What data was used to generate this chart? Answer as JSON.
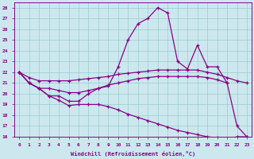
{
  "xlabel": "Windchill (Refroidissement éolien,°C)",
  "background_color": "#cce8ee",
  "line_color": "#880088",
  "grid_color": "#99cccc",
  "xlim": [
    -0.5,
    23.5
  ],
  "ylim": [
    16,
    28.5
  ],
  "yticks": [
    16,
    17,
    18,
    19,
    20,
    21,
    22,
    23,
    24,
    25,
    26,
    27,
    28
  ],
  "xticks": [
    0,
    1,
    2,
    3,
    4,
    5,
    6,
    7,
    8,
    9,
    10,
    11,
    12,
    13,
    14,
    15,
    16,
    17,
    18,
    19,
    20,
    21,
    22,
    23
  ],
  "series_top_x": [
    0,
    1,
    2,
    3,
    4,
    5,
    6,
    7,
    8,
    9,
    10,
    11,
    12,
    13,
    14,
    15,
    16,
    17,
    18,
    19,
    20,
    21,
    22,
    23
  ],
  "series_top_y": [
    22.0,
    21.0,
    20.5,
    20.5,
    20.3,
    20.1,
    20.1,
    20.3,
    20.5,
    20.7,
    22.5,
    25.0,
    26.5,
    27.0,
    28.0,
    27.5,
    23.0,
    22.3,
    24.5,
    22.5,
    22.5,
    21.0,
    17.0,
    16.0
  ],
  "series_upper_x": [
    0,
    1,
    2,
    3,
    4,
    5,
    6,
    7,
    8,
    9,
    10,
    11,
    12,
    13,
    14,
    15,
    16,
    17,
    18,
    19,
    20,
    21,
    22,
    23
  ],
  "series_upper_y": [
    22.0,
    21.5,
    21.2,
    21.2,
    21.2,
    21.2,
    21.3,
    21.4,
    21.5,
    21.6,
    21.8,
    21.9,
    22.0,
    22.1,
    22.2,
    22.2,
    22.2,
    22.2,
    22.2,
    22.0,
    21.8,
    21.5,
    21.2,
    21.0
  ],
  "series_mid_x": [
    0,
    1,
    2,
    3,
    4,
    5,
    6,
    7,
    8,
    9,
    10,
    11,
    12,
    13,
    14,
    15,
    16,
    17,
    18,
    19,
    20,
    21
  ],
  "series_mid_y": [
    22.0,
    21.0,
    20.5,
    19.8,
    19.8,
    19.3,
    19.3,
    20.0,
    20.5,
    20.8,
    21.0,
    21.2,
    21.4,
    21.5,
    21.6,
    21.6,
    21.6,
    21.6,
    21.6,
    21.5,
    21.3,
    21.0
  ],
  "series_low_x": [
    0,
    1,
    2,
    3,
    4,
    5,
    6,
    7,
    8,
    9,
    10,
    11,
    12,
    13,
    14,
    15,
    16,
    17,
    18,
    19,
    20,
    21,
    22,
    23
  ],
  "series_low_y": [
    22.0,
    21.0,
    20.5,
    19.8,
    19.4,
    18.9,
    19.0,
    19.0,
    19.0,
    18.8,
    18.5,
    18.1,
    17.8,
    17.5,
    17.2,
    16.9,
    16.6,
    16.4,
    16.2,
    16.0,
    15.9,
    15.8,
    16.0,
    16.0
  ]
}
